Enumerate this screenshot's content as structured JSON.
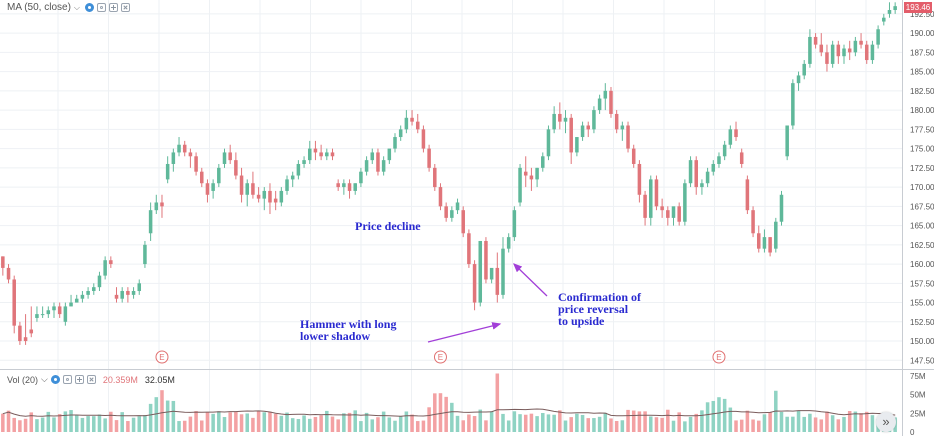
{
  "legend": {
    "ma_label": "MA (50, close)",
    "volume_label": "Vol (20)",
    "volume_value": "20.359M",
    "volume_ma_value": "32.05M",
    "current_price_tag": "193.46"
  },
  "colors": {
    "up": "#5fb89a",
    "down": "#e0757a",
    "volume_up": "#8fd3c3",
    "volume_down": "#f3a1a3",
    "annotation_text": "#2a2ad0",
    "arrow": "#a23fd8",
    "grid": "#eef1f4",
    "earnings_marker": "#e07070"
  },
  "annotations": {
    "price_decline": "Price decline",
    "hammer": "Hammer with long lower shadow",
    "confirmation": "Confirmation of price reversal to upside"
  },
  "earnings_marker_label": "E",
  "chart_data": {
    "type": "candlestick",
    "y_axis": {
      "ticks": [
        "147.50",
        "150.00",
        "152.50",
        "155.00",
        "157.50",
        "160.00",
        "162.50",
        "165.00",
        "167.50",
        "170.00",
        "172.50",
        "175.00",
        "177.50",
        "180.00",
        "182.50",
        "185.00",
        "187.50",
        "190.00",
        "192.50"
      ],
      "range": [
        146.5,
        194.3
      ]
    },
    "volume_axis": {
      "ticks": [
        "75M",
        "50M",
        "25M",
        "0"
      ],
      "range": [
        0,
        80
      ]
    },
    "earnings_candles": [
      28,
      77,
      126
    ],
    "candles": [
      [
        161,
        161,
        159.5,
        158.5
      ],
      [
        159.5,
        160,
        158,
        157.5
      ],
      [
        158,
        158.5,
        152,
        151
      ],
      [
        152,
        152.5,
        150,
        149.5
      ],
      [
        150.5,
        153.5,
        150,
        149.5
      ],
      [
        151.5,
        154.5,
        151,
        150.5
      ],
      [
        153,
        154.5,
        153.5,
        152.5
      ],
      [
        153.5,
        154.5,
        153.5,
        153
      ],
      [
        153.5,
        154.5,
        154,
        153
      ],
      [
        154,
        155,
        154.5,
        153
      ],
      [
        154.5,
        155,
        153.5,
        153
      ],
      [
        152.5,
        155,
        154.5,
        152
      ],
      [
        154.5,
        156,
        155,
        154.5
      ],
      [
        155,
        156,
        155.5,
        155
      ],
      [
        155.5,
        156.5,
        156,
        155
      ],
      [
        156,
        157,
        156.5,
        155.5
      ],
      [
        156.5,
        157.5,
        157,
        156
      ],
      [
        157,
        159,
        158.5,
        156.5
      ],
      [
        158.5,
        161,
        160.5,
        158
      ],
      [
        160.5,
        161,
        160,
        159.5
      ],
      [
        156,
        157,
        155.5,
        155
      ],
      [
        155.5,
        157,
        156.5,
        155
      ],
      [
        156.5,
        157,
        156,
        155
      ],
      [
        156,
        157,
        156.5,
        155.5
      ],
      [
        156.5,
        158,
        157.5,
        156
      ],
      [
        160,
        163,
        162.5,
        159.5
      ],
      [
        164,
        168,
        167,
        163
      ],
      [
        167,
        169,
        168,
        166.5
      ],
      [
        168,
        169,
        167.5,
        166
      ],
      [
        171,
        174,
        173,
        170.5
      ],
      [
        173,
        175,
        174.5,
        172
      ],
      [
        174.5,
        176.5,
        175.5,
        174
      ],
      [
        175.5,
        176,
        174.5,
        174
      ],
      [
        174.5,
        175,
        174,
        172.5
      ],
      [
        174,
        174.5,
        172,
        171.5
      ],
      [
        172,
        172.5,
        170.5,
        170
      ],
      [
        170.5,
        171,
        169,
        168
      ],
      [
        169.5,
        171,
        170.5,
        168.5
      ],
      [
        170.5,
        173,
        172.5,
        170
      ],
      [
        173,
        175,
        174.5,
        172.5
      ],
      [
        174.5,
        175.5,
        173.5,
        173
      ],
      [
        173.5,
        174.5,
        171.5,
        171
      ],
      [
        171.5,
        172.5,
        169,
        168
      ],
      [
        169,
        171,
        170.5,
        167.5
      ],
      [
        170.5,
        172,
        169,
        168.5
      ],
      [
        169,
        170,
        168.5,
        168
      ],
      [
        168.5,
        170,
        169.5,
        167
      ],
      [
        169.5,
        170.5,
        168,
        166.5
      ],
      [
        168.5,
        169.5,
        168,
        167
      ],
      [
        168,
        170,
        169.5,
        167.5
      ],
      [
        169.5,
        171.5,
        171,
        169
      ],
      [
        171,
        172,
        171.5,
        170
      ],
      [
        171.5,
        173.5,
        173,
        171
      ],
      [
        173,
        174,
        173.5,
        172.5
      ],
      [
        173.5,
        176,
        175,
        173
      ],
      [
        175,
        176,
        174.5,
        173.5
      ],
      [
        174.5,
        175.5,
        174,
        173.5
      ],
      [
        174,
        175,
        174.5,
        173.5
      ],
      [
        174.5,
        175,
        174,
        173.5
      ],
      [
        170.5,
        171,
        170,
        169.5
      ],
      [
        170,
        171,
        170.5,
        169
      ],
      [
        170.5,
        171,
        169.5,
        168.5
      ],
      [
        169.5,
        170.5,
        170.5,
        169
      ],
      [
        170.5,
        172.5,
        172,
        170
      ],
      [
        172,
        174,
        173.5,
        171.5
      ],
      [
        173.5,
        175,
        174.5,
        173
      ],
      [
        174.5,
        175,
        172,
        171.5
      ],
      [
        172,
        174,
        173.5,
        171.5
      ],
      [
        173.5,
        174.5,
        175,
        173
      ],
      [
        175,
        177,
        176.5,
        174.5
      ],
      [
        176.5,
        178,
        177.5,
        176
      ],
      [
        177.5,
        180,
        179,
        177
      ],
      [
        179,
        180,
        178.5,
        178
      ],
      [
        178.5,
        179.5,
        177.5,
        177
      ],
      [
        177.5,
        178,
        175,
        174.5
      ],
      [
        175,
        175.5,
        172.5,
        172
      ],
      [
        172.5,
        173,
        170,
        169.5
      ],
      [
        170,
        170.5,
        167.5,
        167
      ],
      [
        167.5,
        168,
        166,
        165.5
      ],
      [
        166,
        167.5,
        167,
        165.5
      ],
      [
        167,
        168.5,
        168,
        166.5
      ],
      [
        167,
        167.5,
        164,
        163.5
      ],
      [
        164,
        164.5,
        160,
        159.5
      ],
      [
        160,
        160.5,
        155,
        154
      ],
      [
        155,
        163,
        163,
        154.5
      ],
      [
        163,
        163.5,
        158,
        157.5
      ],
      [
        158,
        159,
        159.5,
        157.5
      ],
      [
        159.5,
        161.5,
        156,
        155
      ],
      [
        156,
        163.5,
        162,
        155.5
      ],
      [
        162,
        164,
        163.5,
        161.5
      ],
      [
        163.5,
        167.5,
        167,
        163
      ],
      [
        168,
        173,
        172.5,
        167.5
      ],
      [
        172,
        174,
        171.5,
        170
      ],
      [
        171.5,
        172.5,
        171,
        169.5
      ],
      [
        171,
        172.5,
        172.5,
        170
      ],
      [
        172.5,
        174.5,
        174,
        172
      ],
      [
        174,
        178,
        177.5,
        173.5
      ],
      [
        177.5,
        180.5,
        179.5,
        177
      ],
      [
        179.5,
        181,
        178.5,
        177.5
      ],
      [
        178.5,
        180,
        179,
        177
      ],
      [
        179,
        179.5,
        174.5,
        173
      ],
      [
        174.5,
        175.5,
        176.5,
        174
      ],
      [
        176.5,
        178.5,
        178,
        176
      ],
      [
        178,
        178.5,
        177.5,
        176.5
      ],
      [
        177.5,
        180.5,
        180,
        177
      ],
      [
        180,
        182,
        181.5,
        179.5
      ],
      [
        181.5,
        183.5,
        182.5,
        180
      ],
      [
        182.5,
        183,
        179.5,
        179
      ],
      [
        179.5,
        180,
        177.5,
        177
      ],
      [
        177.5,
        178.5,
        178,
        176
      ],
      [
        178,
        178.5,
        175,
        174.5
      ],
      [
        175,
        175.5,
        173,
        172.5
      ],
      [
        173,
        173.5,
        169,
        168
      ],
      [
        169,
        169.5,
        166,
        165
      ],
      [
        166,
        171.5,
        171,
        165
      ],
      [
        171,
        171.5,
        167.5,
        167
      ],
      [
        167.5,
        168.5,
        167,
        166
      ],
      [
        167,
        167.5,
        166,
        165
      ],
      [
        166,
        167,
        167.5,
        165
      ],
      [
        167.5,
        168,
        165.5,
        165
      ],
      [
        165.5,
        171,
        170.5,
        165
      ],
      [
        170.5,
        174,
        173.5,
        170
      ],
      [
        173.5,
        174,
        170,
        169
      ],
      [
        170,
        171,
        170.5,
        169
      ],
      [
        170.5,
        172.5,
        172,
        170
      ],
      [
        172,
        173.5,
        173,
        171.5
      ],
      [
        173,
        174.5,
        174,
        172.5
      ],
      [
        174,
        176,
        175.5,
        173.5
      ],
      [
        175.5,
        178,
        177.5,
        175
      ],
      [
        177.5,
        178.5,
        176.5,
        176
      ],
      [
        174.5,
        175,
        173,
        172.5
      ],
      [
        171,
        171.5,
        167,
        166.5
      ],
      [
        167,
        167.5,
        164,
        163.5
      ],
      [
        164,
        165,
        162,
        161.5
      ],
      [
        162,
        164.5,
        163.5,
        161.5
      ],
      [
        163.5,
        163.5,
        161.5,
        161
      ],
      [
        162,
        166,
        165.5,
        161.5
      ],
      [
        165.5,
        169.5,
        169,
        165
      ],
      [
        174,
        178,
        178,
        173.5
      ],
      [
        178,
        184,
        183.5,
        177.5
      ],
      [
        183.5,
        185,
        184.5,
        182.5
      ],
      [
        184.5,
        186.5,
        186,
        184
      ],
      [
        186,
        190.5,
        189.5,
        185.5
      ],
      [
        189.5,
        190,
        188.5,
        188
      ],
      [
        188.5,
        190,
        187.5,
        187
      ],
      [
        187.5,
        188.5,
        186,
        185
      ],
      [
        186,
        189,
        188.5,
        185.5
      ],
      [
        188.5,
        189,
        187,
        186
      ],
      [
        187,
        188.5,
        188,
        186
      ],
      [
        188,
        189,
        187.5,
        186.5
      ],
      [
        187.5,
        189.5,
        189,
        187
      ],
      [
        189,
        190,
        188.5,
        188
      ],
      [
        188.5,
        189,
        186.5,
        186
      ],
      [
        186.5,
        189,
        188.5,
        186
      ],
      [
        188.5,
        191,
        190.5,
        188
      ],
      [
        191.5,
        192.5,
        192,
        191
      ],
      [
        192.5,
        194,
        193,
        192
      ],
      [
        193,
        194,
        193.5,
        192.5
      ]
    ]
  }
}
